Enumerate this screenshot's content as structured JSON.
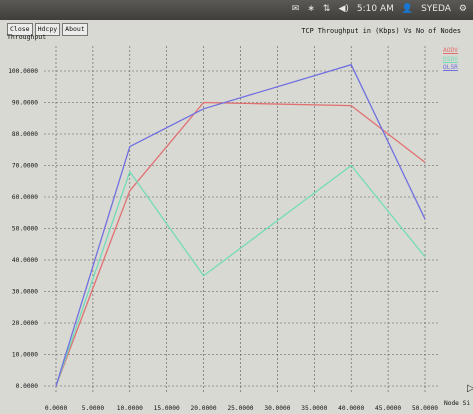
{
  "topbar": {
    "mail_icon": "mail-icon",
    "bluetooth_icon": "bluetooth-icon",
    "network_icon": "network-icon",
    "volume_icon": "volume-icon",
    "time": "5:10 AM",
    "user_icon": "user-icon",
    "user": "SYEDA",
    "gear_icon": "gear-icon"
  },
  "toolbar": {
    "close": "Close",
    "hdcpy": "Hdcpy",
    "about": "About"
  },
  "chart_data": {
    "type": "line",
    "title": "TCP Throughput in (Kbps) Vs No of Nodes",
    "xlabel": "Node Si",
    "ylabel": "Throughput",
    "xlim": [
      0,
      50000
    ],
    "ylim": [
      0,
      100000
    ],
    "x_ticks": [
      "0.0000",
      "5.0000",
      "10.0000",
      "15.0000",
      "20.0000",
      "25.0000",
      "30.0000",
      "35.0000",
      "40.0000",
      "45.0000",
      "50.0000"
    ],
    "y_ticks": [
      "0.0000",
      "10.0000",
      "20.0000",
      "30.0000",
      "40.0000",
      "50.0000",
      "60.0000",
      "70.0000",
      "80.0000",
      "90.0000",
      "100.0000"
    ],
    "y_tick_labels_shown": [
      {
        "value": 0,
        "label": "0.0000"
      },
      {
        "value": 10000,
        "label": "10.0000"
      },
      {
        "value": 20000,
        "label": "20.0000"
      },
      {
        "value": 30000,
        "label": "30.0000"
      },
      {
        "value": 40000,
        "label": "40.0000"
      },
      {
        "value": 50000,
        "label": "50.0000"
      },
      {
        "value": 60000,
        "label": "60.0000"
      },
      {
        "value": 70000,
        "label": "70.0000"
      },
      {
        "value": 80000,
        "label": "80.0000"
      },
      {
        "value": 90000,
        "label": "90.0000"
      },
      {
        "value": 100000,
        "label": "100.0000"
      }
    ],
    "x_tick_values": [
      0,
      5000,
      10000,
      15000,
      20000,
      25000,
      30000,
      35000,
      40000,
      45000,
      50000
    ],
    "grid": true,
    "legend_position": "top-right",
    "x": [
      0,
      10000,
      20000,
      40000,
      50000
    ],
    "series": [
      {
        "name": "AODV",
        "color": "#e07070",
        "values": [
          0,
          62000,
          90000,
          89000,
          71000
        ]
      },
      {
        "name": "DSDV",
        "color": "#72dcb6",
        "values": [
          0,
          68000,
          35000,
          70000,
          41000
        ]
      },
      {
        "name": "OLSR",
        "color": "#7070e0",
        "values": [
          0,
          76000,
          88000,
          102000,
          53000
        ]
      }
    ]
  }
}
